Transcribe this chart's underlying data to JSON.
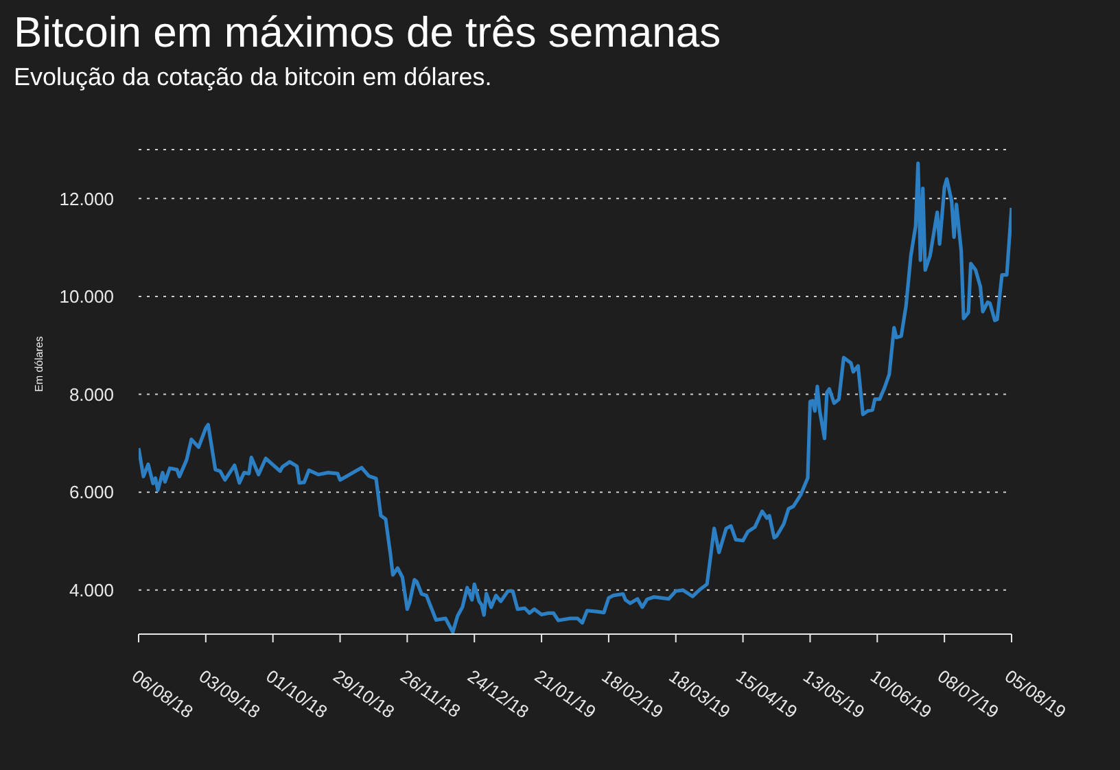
{
  "chart_data": {
    "type": "line",
    "title": "Bitcoin em máximos de três semanas",
    "subtitle": "Evolução da cotação da bitcoin em dólares.",
    "ylabel": "Em dólares",
    "x": [
      "2018-08-06",
      "2018-08-08",
      "2018-08-10",
      "2018-08-12",
      "2018-08-13",
      "2018-08-14",
      "2018-08-16",
      "2018-08-17",
      "2018-08-19",
      "2018-08-22",
      "2018-08-23",
      "2018-08-26",
      "2018-08-28",
      "2018-08-31",
      "2018-09-03",
      "2018-09-04",
      "2018-09-07",
      "2018-09-09",
      "2018-09-11",
      "2018-09-15",
      "2018-09-17",
      "2018-09-19",
      "2018-09-21",
      "2018-09-22",
      "2018-09-25",
      "2018-09-28",
      "2018-10-01",
      "2018-10-04",
      "2018-10-05",
      "2018-10-08",
      "2018-10-11",
      "2018-10-12",
      "2018-10-14",
      "2018-10-16",
      "2018-10-20",
      "2018-10-24",
      "2018-10-28",
      "2018-10-29",
      "2018-11-07",
      "2018-11-10",
      "2018-11-13",
      "2018-11-15",
      "2018-11-17",
      "2018-11-19",
      "2018-11-20",
      "2018-11-22",
      "2018-11-24",
      "2018-11-26",
      "2018-11-27",
      "2018-11-29",
      "2018-11-30",
      "2018-12-02",
      "2018-12-04",
      "2018-12-08",
      "2018-12-12",
      "2018-12-15",
      "2018-12-17",
      "2018-12-19",
      "2018-12-21",
      "2018-12-23",
      "2018-12-24",
      "2018-12-26",
      "2018-12-27",
      "2018-12-28",
      "2018-12-29",
      "2018-12-31",
      "2019-01-02",
      "2019-01-04",
      "2019-01-07",
      "2019-01-09",
      "2019-01-11",
      "2019-01-14",
      "2019-01-16",
      "2019-01-18",
      "2019-01-21",
      "2019-01-24",
      "2019-01-26",
      "2019-01-28",
      "2019-02-02",
      "2019-02-05",
      "2019-02-07",
      "2019-02-09",
      "2019-02-13",
      "2019-02-16",
      "2019-02-18",
      "2019-02-20",
      "2019-02-24",
      "2019-02-25",
      "2019-02-27",
      "2019-03-02",
      "2019-03-04",
      "2019-03-06",
      "2019-03-09",
      "2019-03-15",
      "2019-03-18",
      "2019-03-21",
      "2019-03-25",
      "2019-03-28",
      "2019-03-31",
      "2019-04-03",
      "2019-04-05",
      "2019-04-08",
      "2019-04-10",
      "2019-04-12",
      "2019-04-15",
      "2019-04-17",
      "2019-04-20",
      "2019-04-23",
      "2019-04-25",
      "2019-04-26",
      "2019-04-28",
      "2019-04-29",
      "2019-05-02",
      "2019-05-04",
      "2019-05-06",
      "2019-05-09",
      "2019-05-12",
      "2019-05-13",
      "2019-05-14",
      "2019-05-15",
      "2019-05-16",
      "2019-05-17",
      "2019-05-19",
      "2019-05-20",
      "2019-05-21",
      "2019-05-23",
      "2019-05-25",
      "2019-05-27",
      "2019-05-30",
      "2019-05-31",
      "2019-06-02",
      "2019-06-04",
      "2019-06-06",
      "2019-06-08",
      "2019-06-09",
      "2019-06-11",
      "2019-06-13",
      "2019-06-15",
      "2019-06-17",
      "2019-06-18",
      "2019-06-20",
      "2019-06-22",
      "2019-06-24",
      "2019-06-26",
      "2019-06-27",
      "2019-06-28",
      "2019-06-29",
      "2019-06-30",
      "2019-07-02",
      "2019-07-05",
      "2019-07-06",
      "2019-07-08",
      "2019-07-09",
      "2019-07-11",
      "2019-07-12",
      "2019-07-13",
      "2019-07-15",
      "2019-07-16",
      "2019-07-18",
      "2019-07-19",
      "2019-07-21",
      "2019-07-23",
      "2019-07-24",
      "2019-07-26",
      "2019-07-27",
      "2019-07-29",
      "2019-07-30",
      "2019-08-01",
      "2019-08-03",
      "2019-08-05"
    ],
    "series": [
      {
        "color": "#2b7fc2",
        "values": [
          6900,
          6320,
          6570,
          6180,
          6290,
          6040,
          6400,
          6210,
          6490,
          6460,
          6320,
          6660,
          7080,
          6920,
          7310,
          7380,
          6460,
          6430,
          6250,
          6550,
          6190,
          6400,
          6380,
          6710,
          6360,
          6690,
          6560,
          6430,
          6520,
          6620,
          6530,
          6190,
          6200,
          6450,
          6360,
          6400,
          6380,
          6250,
          6500,
          6330,
          6280,
          5520,
          5450,
          4730,
          4310,
          4450,
          4260,
          3610,
          3750,
          4210,
          4170,
          3920,
          3890,
          3390,
          3420,
          3140,
          3470,
          3650,
          4050,
          3800,
          4120,
          3770,
          3700,
          3490,
          3930,
          3650,
          3890,
          3770,
          3980,
          3980,
          3610,
          3630,
          3530,
          3610,
          3500,
          3530,
          3530,
          3380,
          3420,
          3420,
          3330,
          3580,
          3560,
          3540,
          3840,
          3890,
          3920,
          3800,
          3730,
          3820,
          3650,
          3810,
          3860,
          3820,
          3980,
          4000,
          3870,
          4010,
          4120,
          5260,
          4770,
          5260,
          5310,
          5030,
          5010,
          5190,
          5290,
          5610,
          5470,
          5520,
          5070,
          5100,
          5350,
          5660,
          5710,
          5940,
          6290,
          7850,
          7870,
          7660,
          8160,
          7660,
          7100,
          8040,
          8110,
          7820,
          7900,
          8750,
          8640,
          8460,
          8580,
          7590,
          7660,
          7680,
          7900,
          7900,
          8130,
          8410,
          9360,
          9160,
          9190,
          9810,
          10830,
          11440,
          12720,
          10740,
          12210,
          10540,
          10830,
          11720,
          11070,
          12230,
          12400,
          11950,
          11210,
          11880,
          10930,
          9550,
          9670,
          10670,
          10540,
          10200,
          9690,
          9880,
          9860,
          9510,
          9530,
          10440,
          10440,
          11810
        ]
      }
    ],
    "xlim": [
      "2018-08-06",
      "2019-08-05"
    ],
    "xticks": [
      {
        "value": "2018-08-06",
        "label": "06/08/18"
      },
      {
        "value": "2018-09-03",
        "label": "03/09/18"
      },
      {
        "value": "2018-10-01",
        "label": "01/10/18"
      },
      {
        "value": "2018-10-29",
        "label": "29/10/18"
      },
      {
        "value": "2018-11-26",
        "label": "26/11/18"
      },
      {
        "value": "2018-12-24",
        "label": "24/12/18"
      },
      {
        "value": "2019-01-21",
        "label": "21/01/19"
      },
      {
        "value": "2019-02-18",
        "label": "18/02/19"
      },
      {
        "value": "2019-03-18",
        "label": "18/03/19"
      },
      {
        "value": "2019-04-15",
        "label": "15/04/19"
      },
      {
        "value": "2019-05-13",
        "label": "13/05/19"
      },
      {
        "value": "2019-06-10",
        "label": "10/06/19"
      },
      {
        "value": "2019-07-08",
        "label": "08/07/19"
      },
      {
        "value": "2019-08-05",
        "label": "05/08/19"
      }
    ],
    "ylim": [
      3100,
      13000
    ],
    "yticks": [
      {
        "value": 4000,
        "label": "4.000"
      },
      {
        "value": 6000,
        "label": "6.000"
      },
      {
        "value": 8000,
        "label": "8.000"
      },
      {
        "value": 10000,
        "label": "10.000"
      },
      {
        "value": 12000,
        "label": "12.000"
      }
    ],
    "grid": "y",
    "line_style": "solid"
  }
}
